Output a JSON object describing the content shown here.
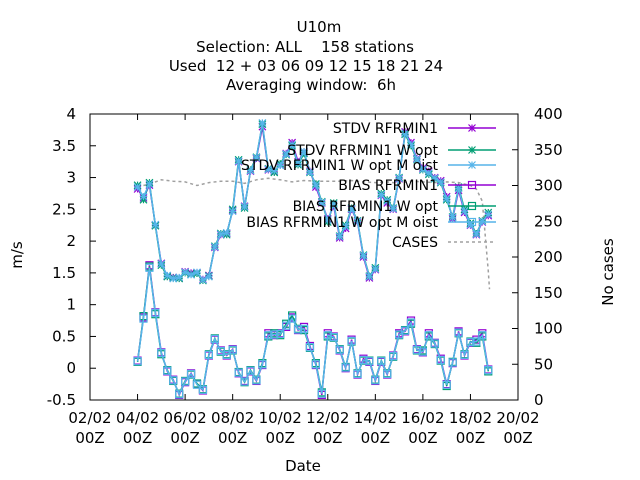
{
  "chart_data": {
    "type": "line",
    "title_lines": [
      "U10m",
      "Selection: ALL    158 stations",
      "Used  12 + 03 06 09 12 15 18 21 24",
      "Averaging window:  6h"
    ],
    "xlabel": "Date",
    "ylabel": "m/s",
    "y2label": "No cases",
    "xlim": [
      0,
      18
    ],
    "ylim": [
      -0.5,
      4
    ],
    "y2lim": [
      0,
      400
    ],
    "x_ticks": [
      {
        "v": 0,
        "l1": "02/02",
        "l2": "00Z"
      },
      {
        "v": 2,
        "l1": "04/02",
        "l2": "00Z"
      },
      {
        "v": 4,
        "l1": "06/02",
        "l2": "00Z"
      },
      {
        "v": 6,
        "l1": "08/02",
        "l2": "00Z"
      },
      {
        "v": 8,
        "l1": "10/02",
        "l2": "00Z"
      },
      {
        "v": 10,
        "l1": "12/02",
        "l2": "00Z"
      },
      {
        "v": 12,
        "l1": "14/02",
        "l2": "00Z"
      },
      {
        "v": 14,
        "l1": "16/02",
        "l2": "00Z"
      },
      {
        "v": 16,
        "l1": "18/02",
        "l2": "00Z"
      },
      {
        "v": 18,
        "l1": "20/02",
        "l2": "00Z"
      }
    ],
    "y_ticks": [
      -0.5,
      0,
      0.5,
      1,
      1.5,
      2,
      2.5,
      3,
      3.5,
      4
    ],
    "y_tick_labels": [
      "-0.5",
      "0",
      "0.5",
      "1",
      "1.5",
      "2",
      "2.5",
      "3",
      "3.5",
      "4"
    ],
    "y2_ticks": [
      0,
      50,
      100,
      150,
      200,
      250,
      300,
      350,
      400
    ],
    "y2_tick_labels": [
      "0",
      "50",
      "100",
      "150",
      "200",
      "250",
      "300",
      "350",
      "400"
    ],
    "legend_position": "top-right",
    "legend": [
      {
        "label": "STDV RFRMIN1",
        "sub": "",
        "marker": "x",
        "color": "#9400d3"
      },
      {
        "label": "STDV RFRMIN1",
        "sub": "W opt",
        "marker": "x",
        "color": "#009e73"
      },
      {
        "label": "STDV RFRMIN1",
        "sub": "W opt M oist",
        "marker": "x",
        "color": "#56b4e9"
      },
      {
        "label": "BIAS RFRMIN1",
        "sub": "",
        "marker": "sq",
        "color": "#9400d3"
      },
      {
        "label": "BIAS RFRMIN1",
        "sub": "W opt",
        "marker": "sq",
        "color": "#009e73"
      },
      {
        "label": "BIAS RFRMIN1",
        "sub": "W opt M oist",
        "marker": "sq",
        "color": "#56b4e9"
      },
      {
        "label": "CASES",
        "sub": "",
        "marker": "dash",
        "color": "#a0a0a0"
      }
    ],
    "x": [
      2,
      2.25,
      2.5,
      2.75,
      3,
      3.25,
      3.5,
      3.75,
      4,
      4.25,
      4.5,
      4.75,
      5,
      5.25,
      5.5,
      5.75,
      6,
      6.25,
      6.5,
      6.75,
      7,
      7.25,
      7.5,
      7.75,
      8,
      8.25,
      8.5,
      8.75,
      9,
      9.25,
      9.5,
      9.75,
      10,
      10.25,
      10.5,
      10.75,
      11,
      11.25,
      11.5,
      11.75,
      12,
      12.25,
      12.5,
      12.75,
      13,
      13.25,
      13.5,
      13.75,
      14,
      14.25,
      14.5,
      14.75,
      15,
      15.25,
      15.5,
      15.75,
      16,
      16.25,
      16.5,
      16.75
    ],
    "series": [
      {
        "role": "stdv",
        "color": "#9400d3",
        "marker": "x",
        "values": [
          2.82,
          2.68,
          2.88,
          2.25,
          1.65,
          1.45,
          1.43,
          1.42,
          1.52,
          1.5,
          1.5,
          1.4,
          1.46,
          1.9,
          2.1,
          2.12,
          2.48,
          3.25,
          2.55,
          3.1,
          3.3,
          3.8,
          3.12,
          3.1,
          3.2,
          3.38,
          3.55,
          3.25,
          3.4,
          3.1,
          2.85,
          2.6,
          2.35,
          2.55,
          2.05,
          2.2,
          2.5,
          2.3,
          1.75,
          1.42,
          1.55,
          2.72,
          2.6,
          2.5,
          2.98,
          3.72,
          3.55,
          3.3,
          3.15,
          3.1,
          3.0,
          2.95,
          2.7,
          2.35,
          2.8,
          2.45,
          2.25,
          2.1,
          2.3,
          2.4
        ]
      },
      {
        "role": "stdv",
        "color": "#009e73",
        "marker": "x",
        "values": [
          2.88,
          2.65,
          2.92,
          2.24,
          1.62,
          1.44,
          1.42,
          1.41,
          1.5,
          1.48,
          1.49,
          1.38,
          1.45,
          1.92,
          2.12,
          2.1,
          2.5,
          3.28,
          2.52,
          3.12,
          3.32,
          3.84,
          3.14,
          3.08,
          3.22,
          3.36,
          3.5,
          3.2,
          3.38,
          3.08,
          2.9,
          2.62,
          2.3,
          2.6,
          2.08,
          2.25,
          2.52,
          2.32,
          1.78,
          1.45,
          1.58,
          2.75,
          2.65,
          2.52,
          3.0,
          3.68,
          3.5,
          3.28,
          3.12,
          3.05,
          2.98,
          2.92,
          2.65,
          2.38,
          2.85,
          2.5,
          2.28,
          2.12,
          2.32,
          2.45
        ]
      },
      {
        "role": "stdv",
        "color": "#56b4e9",
        "marker": "x",
        "values": [
          2.85,
          2.7,
          2.9,
          2.26,
          1.64,
          1.46,
          1.41,
          1.43,
          1.51,
          1.47,
          1.51,
          1.39,
          1.44,
          1.91,
          2.11,
          2.13,
          2.47,
          3.26,
          2.54,
          3.11,
          3.31,
          3.86,
          3.13,
          3.11,
          3.19,
          3.37,
          3.52,
          3.22,
          3.41,
          3.09,
          2.88,
          2.61,
          2.33,
          2.58,
          2.07,
          2.23,
          2.51,
          2.31,
          1.77,
          1.44,
          1.56,
          2.73,
          2.63,
          2.51,
          2.99,
          3.7,
          3.52,
          3.29,
          3.13,
          3.07,
          2.99,
          2.93,
          2.67,
          2.37,
          2.83,
          2.47,
          2.26,
          2.11,
          2.31,
          2.42
        ]
      },
      {
        "role": "bias",
        "color": "#9400d3",
        "marker": "sq",
        "values": [
          0.12,
          0.8,
          1.62,
          0.88,
          0.25,
          -0.05,
          -0.18,
          -0.42,
          -0.22,
          -0.08,
          -0.25,
          -0.35,
          0.2,
          0.45,
          0.28,
          0.2,
          0.3,
          -0.08,
          -0.2,
          -0.05,
          -0.2,
          0.05,
          0.55,
          0.52,
          0.55,
          0.65,
          0.8,
          0.6,
          0.65,
          0.35,
          0.05,
          -0.42,
          0.55,
          0.5,
          0.28,
          0.0,
          0.45,
          -0.1,
          0.15,
          0.1,
          -0.2,
          0.1,
          -0.1,
          0.2,
          0.55,
          0.58,
          0.75,
          0.3,
          0.25,
          0.55,
          0.4,
          0.15,
          -0.25,
          0.08,
          0.58,
          0.2,
          0.4,
          0.45,
          0.55,
          -0.02
        ]
      },
      {
        "role": "bias",
        "color": "#009e73",
        "marker": "sq",
        "values": [
          0.1,
          0.82,
          1.6,
          0.85,
          0.22,
          -0.03,
          -0.2,
          -0.4,
          -0.2,
          -0.1,
          -0.24,
          -0.33,
          0.22,
          0.47,
          0.26,
          0.22,
          0.28,
          -0.06,
          -0.22,
          -0.03,
          -0.18,
          0.08,
          0.5,
          0.55,
          0.52,
          0.7,
          0.83,
          0.62,
          0.6,
          0.32,
          0.08,
          -0.38,
          0.5,
          0.48,
          0.3,
          0.02,
          0.42,
          -0.08,
          0.12,
          0.12,
          -0.18,
          0.12,
          -0.08,
          0.18,
          0.52,
          0.6,
          0.7,
          0.28,
          0.28,
          0.5,
          0.38,
          0.12,
          -0.28,
          0.1,
          0.55,
          0.22,
          0.42,
          0.4,
          0.5,
          -0.05
        ]
      },
      {
        "role": "bias",
        "color": "#56b4e9",
        "marker": "sq",
        "values": [
          0.11,
          0.78,
          1.58,
          0.87,
          0.24,
          -0.04,
          -0.19,
          -0.41,
          -0.21,
          -0.09,
          -0.26,
          -0.34,
          0.21,
          0.46,
          0.27,
          0.21,
          0.29,
          -0.07,
          -0.21,
          -0.04,
          -0.19,
          0.06,
          0.52,
          0.53,
          0.54,
          0.67,
          0.78,
          0.61,
          0.62,
          0.33,
          0.06,
          -0.4,
          0.52,
          0.49,
          0.29,
          0.01,
          0.43,
          -0.09,
          0.13,
          0.11,
          -0.19,
          0.11,
          -0.09,
          0.19,
          0.53,
          0.59,
          0.72,
          0.29,
          0.26,
          0.52,
          0.39,
          0.13,
          -0.26,
          0.09,
          0.56,
          0.21,
          0.41,
          0.42,
          0.52,
          -0.03
        ]
      }
    ],
    "cases": {
      "color": "#a0a0a0",
      "x": [
        2,
        2.5,
        3,
        3.5,
        4,
        4.5,
        5,
        5.5,
        6,
        6.5,
        7,
        7.5,
        8,
        8.5,
        9,
        9.5,
        10,
        10.5,
        11,
        11.5,
        12,
        12.5,
        13,
        13.5,
        14,
        14.5,
        15,
        15.5,
        16,
        16.25,
        16.5,
        16.75,
        16.8
      ],
      "values": [
        298,
        302,
        308,
        306,
        305,
        300,
        304,
        306,
        306,
        303,
        308,
        310,
        308,
        305,
        307,
        306,
        306,
        306,
        307,
        305,
        304,
        305,
        303,
        306,
        305,
        304,
        305,
        304,
        300,
        295,
        278,
        180,
        155
      ]
    }
  }
}
